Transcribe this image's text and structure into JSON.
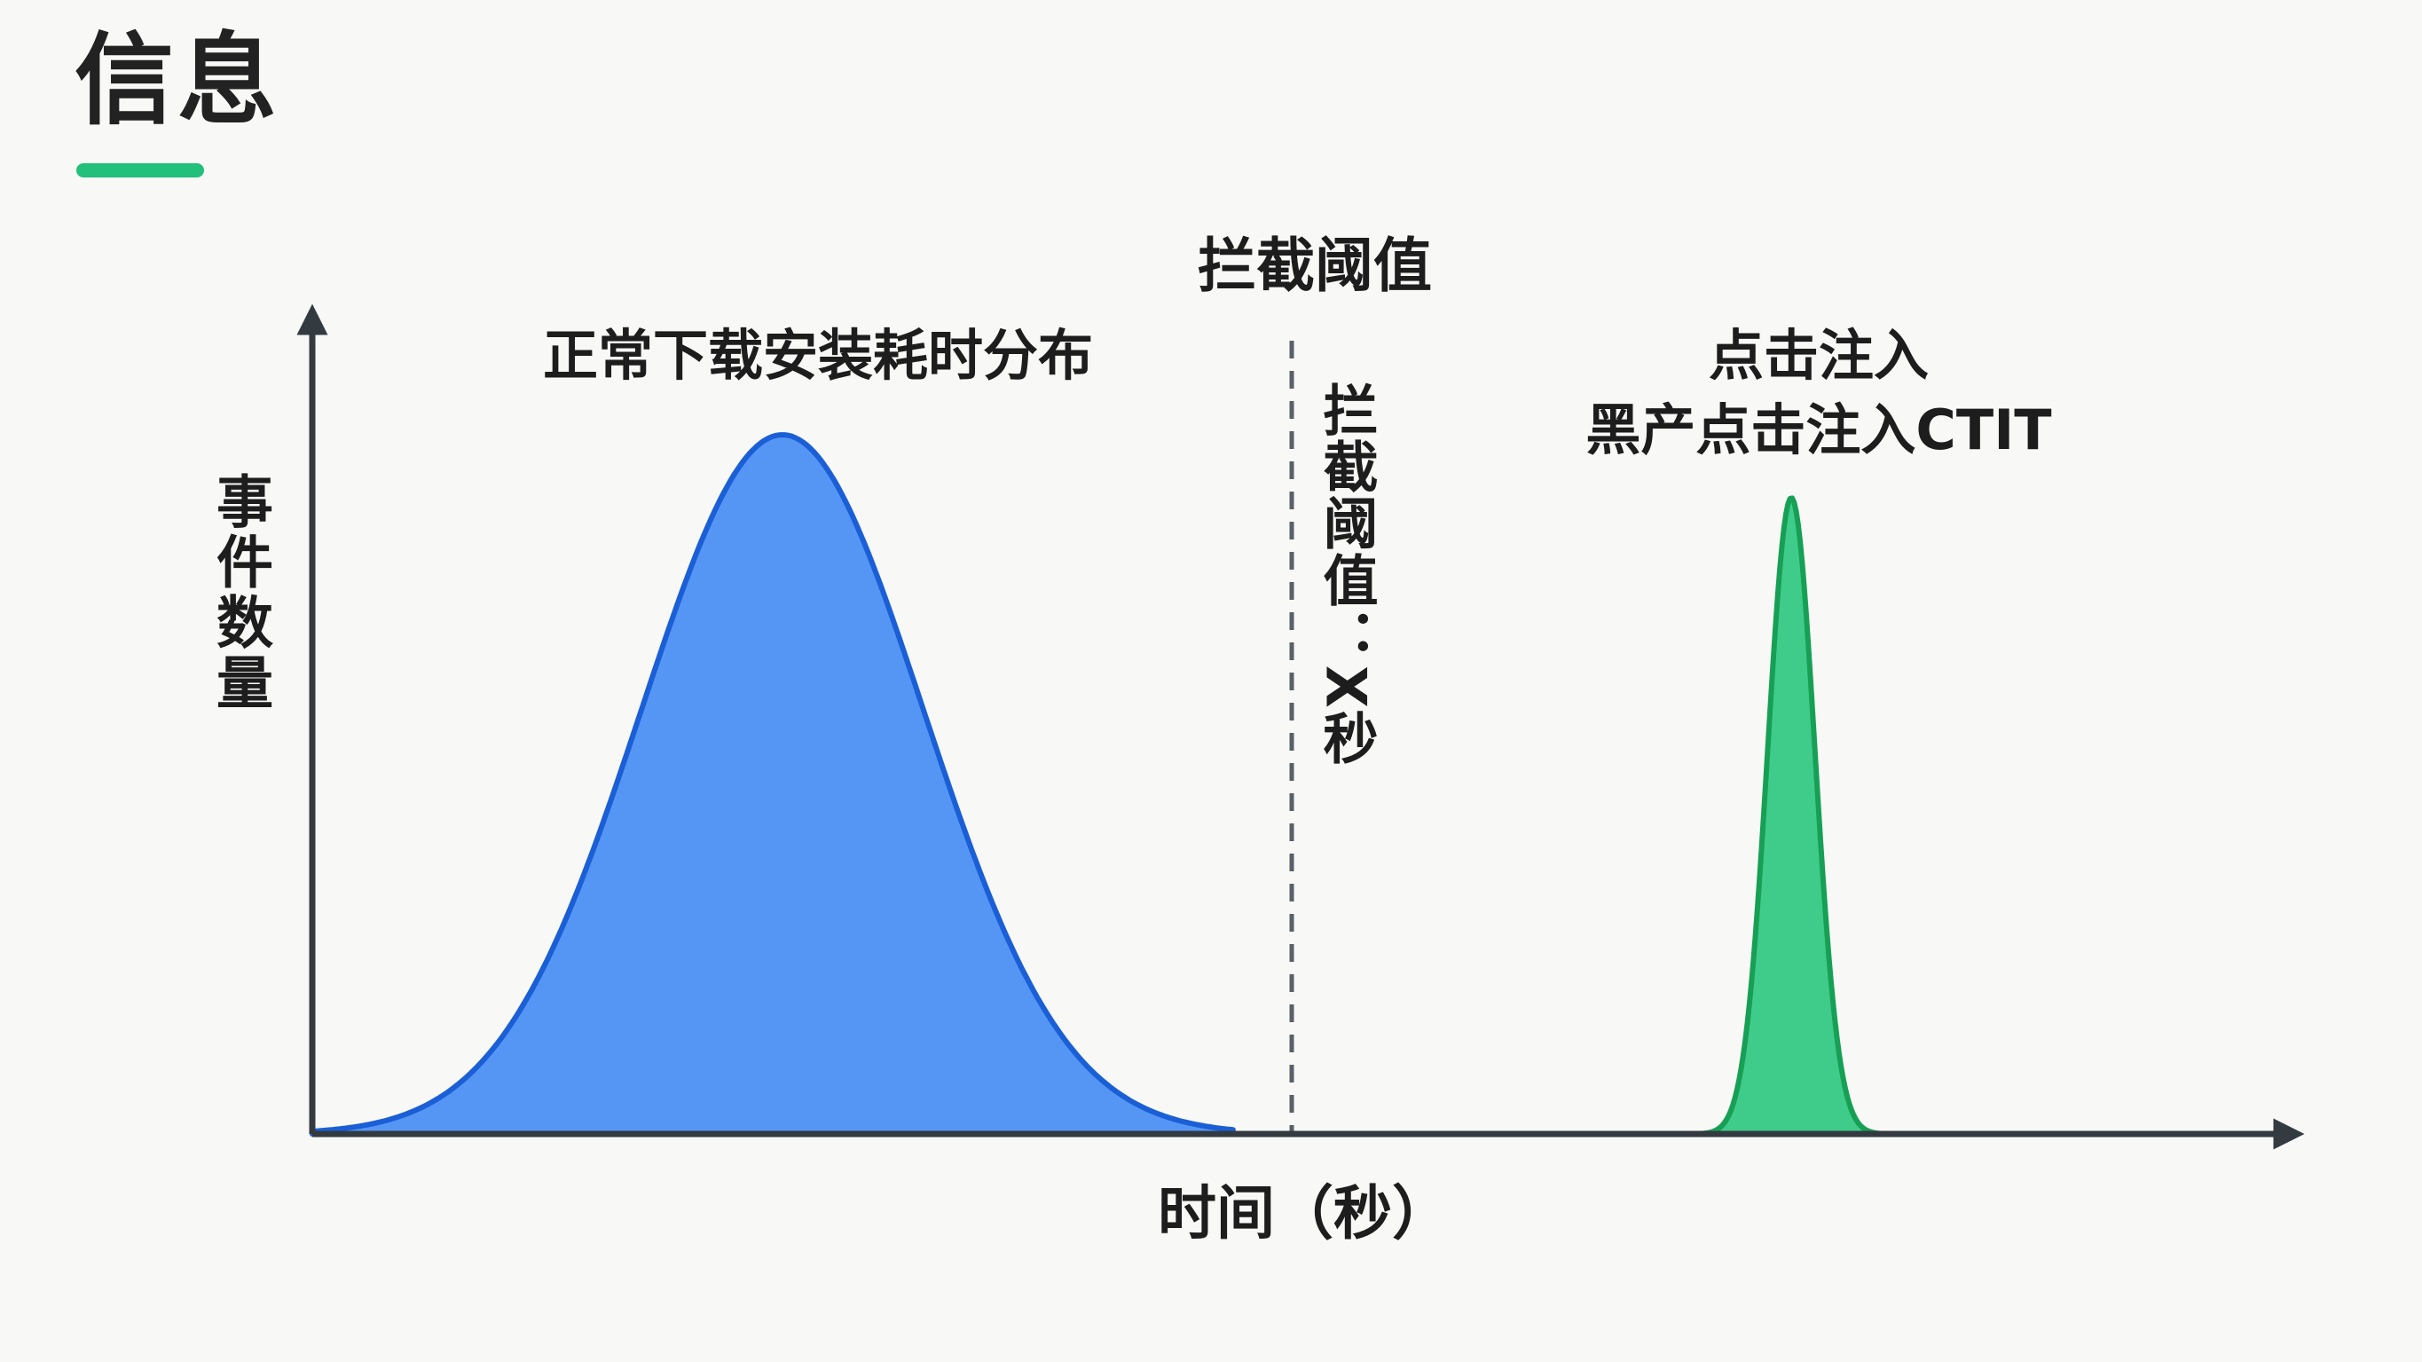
{
  "header": {
    "title": "信息"
  },
  "colors": {
    "accent": "#22c07a",
    "normal_fill": "#5596f5",
    "normal_stroke": "#1a5fd6",
    "click_fill": "#3fcc8a",
    "click_stroke": "#17a055",
    "axis": "#333a40",
    "threshold_line": "#5a6068"
  },
  "chart_data": {
    "type": "area",
    "title": "",
    "xlabel": "时间（秒）",
    "ylabel": "事件数量",
    "xlim": [
      0,
      100
    ],
    "ylim": [
      0,
      100
    ],
    "grid": false,
    "threshold": {
      "x": 50,
      "label_top": "拦截阈值",
      "label_vertical": "拦截阈值：X秒"
    },
    "series": [
      {
        "name": "正常下载安装耗时分布",
        "shape": "gaussian",
        "mean": 24,
        "sd": 7.2,
        "peak": 100,
        "x_start": 0,
        "x_end": 47,
        "color": "#5596f5"
      },
      {
        "name_line1": "点击注入",
        "name_line2": "黑产点击注入CTIT",
        "shape": "gaussian",
        "mean": 75.5,
        "sd": 1.2,
        "peak": 91,
        "x_start": 62,
        "x_end": 87,
        "color": "#3fcc8a"
      }
    ]
  }
}
